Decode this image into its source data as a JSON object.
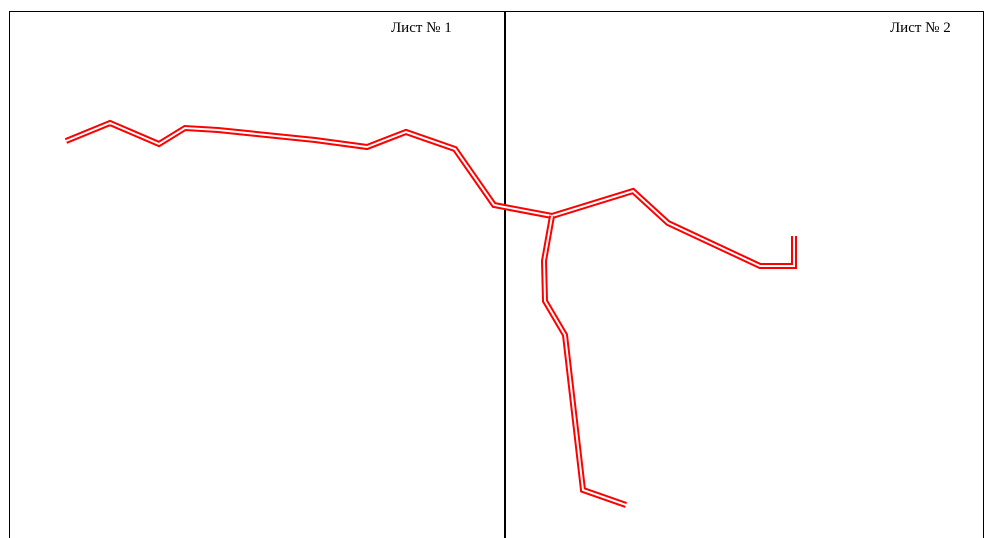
{
  "sheets": [
    {
      "label": "Лист № 1"
    },
    {
      "label": "Лист № 2"
    }
  ],
  "colors": {
    "route": "#ff0000",
    "frame": "#000000"
  }
}
